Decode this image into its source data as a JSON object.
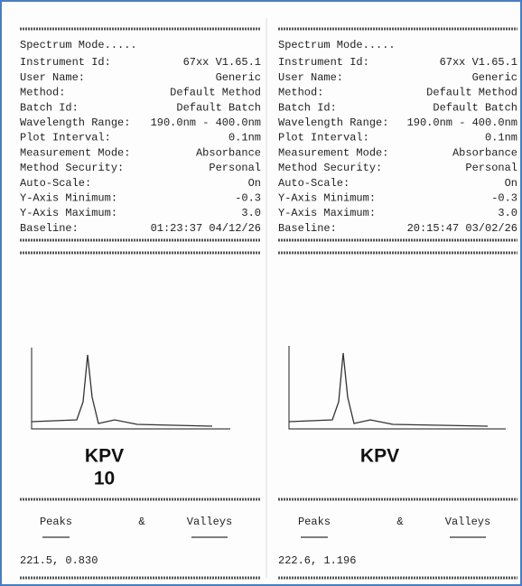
{
  "panels": [
    {
      "header": "Spectrum Mode.....",
      "fields": [
        {
          "label": "Instrument Id:",
          "value": "67xx V1.65.1"
        },
        {
          "label": "User Name:",
          "value": "Generic"
        },
        {
          "label": "Method:",
          "value": "Default Method"
        },
        {
          "label": "Batch Id:",
          "value": "Default Batch"
        },
        {
          "label": "Wavelength Range:",
          "value": "190.0nm - 400.0nm"
        },
        {
          "label": "Plot Interval:",
          "value": "0.1nm"
        },
        {
          "label": "Measurement Mode:",
          "value": "Absorbance"
        },
        {
          "label": "Method Security:",
          "value": "Personal"
        },
        {
          "label": "Auto-Scale:",
          "value": "On"
        },
        {
          "label": "Y-Axis Minimum:",
          "value": "-0.3"
        },
        {
          "label": "Y-Axis Maximum:",
          "value": "3.0"
        },
        {
          "label": "Baseline:",
          "value": "01:23:37 04/12/26"
        }
      ],
      "caption": [
        "KPV",
        "10"
      ],
      "peaks_header": [
        "Peaks",
        "&",
        "Valleys"
      ],
      "peaks": "221.5,  0.830"
    },
    {
      "header": "Spectrum Mode.....",
      "fields": [
        {
          "label": "Instrument Id:",
          "value": "67xx V1.65.1"
        },
        {
          "label": "User Name:",
          "value": "Generic"
        },
        {
          "label": "Method:",
          "value": "Default Method"
        },
        {
          "label": "Batch Id:",
          "value": "Default Batch"
        },
        {
          "label": "Wavelength Range:",
          "value": "190.0nm - 400.0nm"
        },
        {
          "label": "Plot Interval:",
          "value": "0.1nm"
        },
        {
          "label": "Measurement Mode:",
          "value": "Absorbance"
        },
        {
          "label": "Method Security:",
          "value": "Personal"
        },
        {
          "label": "Auto-Scale:",
          "value": "On"
        },
        {
          "label": "Y-Axis Minimum:",
          "value": "-0.3"
        },
        {
          "label": "Y-Axis Maximum:",
          "value": "3.0"
        },
        {
          "label": "Baseline:",
          "value": "20:15:47 03/02/26"
        }
      ],
      "caption": [
        "KPV"
      ],
      "peaks_header": [
        "Peaks",
        "&",
        "Valleys"
      ],
      "peaks": "222.6,  1.196"
    }
  ]
}
